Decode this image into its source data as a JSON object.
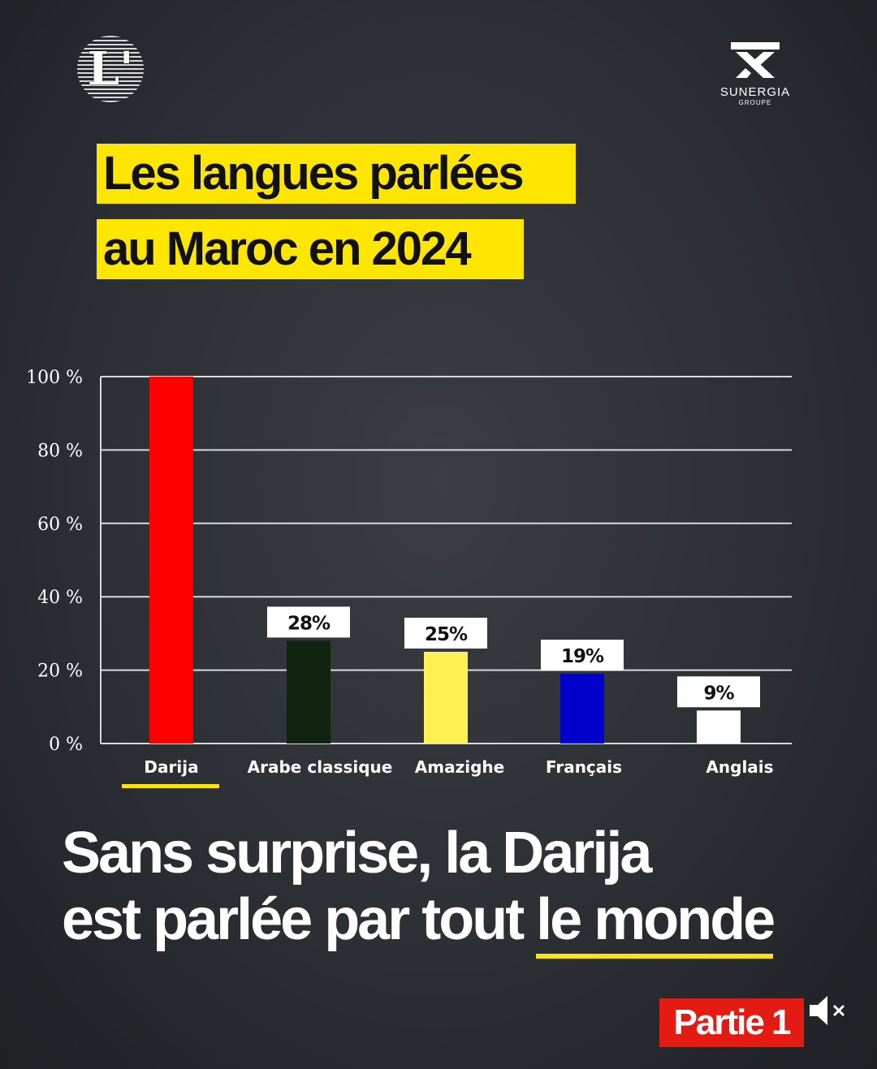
{
  "logos": {
    "left_text": "L'",
    "right_name": "SUNERGIA",
    "right_sub": "GROUPE"
  },
  "title": {
    "line1": "Les langues parlées",
    "line2": "au Maroc en 2024"
  },
  "chart_data": {
    "type": "bar",
    "categories": [
      "Darija",
      "Arabe classique",
      "Amazighe",
      "Français",
      "Anglais"
    ],
    "values": [
      100,
      28,
      25,
      19,
      9
    ],
    "data_labels": [
      "",
      "28%",
      "25%",
      "19%",
      "9%"
    ],
    "colors": [
      "#ff0000",
      "#102410",
      "#fff155",
      "#0000cc",
      "#ffffff"
    ],
    "yticks": [
      "0 %",
      "20 %",
      "40 %",
      "60 %",
      "80 %",
      "100 %"
    ],
    "ytick_values": [
      0,
      20,
      40,
      60,
      80,
      100
    ],
    "ylim": [
      0,
      100
    ],
    "grid": true,
    "highlight_category": "Darija",
    "highlight_color": "#ffe600"
  },
  "headline": {
    "line1": "Sans surprise, la Darija",
    "line2_start": "est parlée par tout ",
    "line2_underlined": "le monde"
  },
  "badge": {
    "label": "Partie 1",
    "color": "#e41b13"
  },
  "mute_icon": "speaker-muted-icon"
}
